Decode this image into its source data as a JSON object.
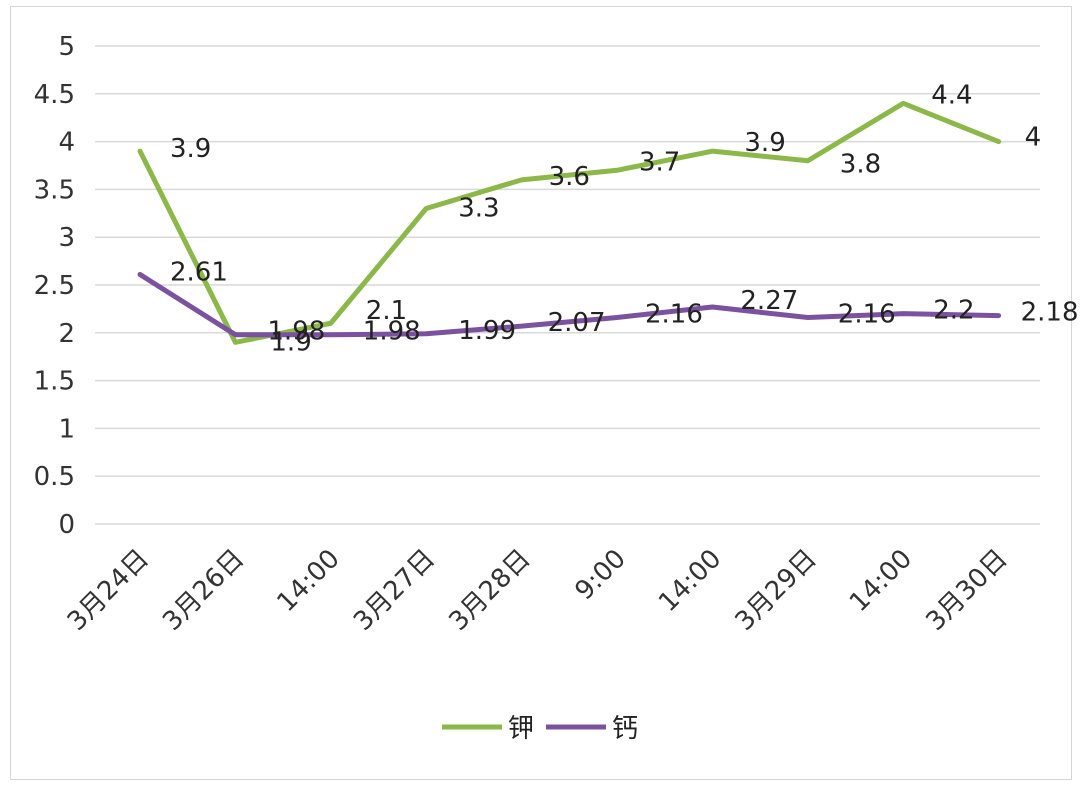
{
  "chart_data": {
    "type": "line",
    "categories": [
      "3月24日",
      "3月26日",
      "14:00",
      "3月27日",
      "3月28日",
      "9:00",
      "14:00",
      "3月29日",
      "14:00",
      "3月30日"
    ],
    "series": [
      {
        "name": "钾",
        "color": "#8cb84a",
        "values": [
          3.9,
          1.9,
          2.1,
          3.3,
          3.6,
          3.7,
          3.9,
          3.8,
          4.4,
          4
        ],
        "labels": [
          "3.9",
          "1.9",
          "2.1",
          "3.3",
          "3.6",
          "3.7",
          "3.9",
          "3.8",
          "4.4",
          "4"
        ]
      },
      {
        "name": "钙",
        "color": "#7b52a0",
        "values": [
          2.61,
          1.98,
          1.98,
          1.99,
          2.07,
          2.16,
          2.27,
          2.16,
          2.2,
          2.18
        ],
        "labels": [
          "2.61",
          "1.98",
          "1.98",
          "1.99",
          "2.07",
          "2.16",
          "2.27",
          "2.16",
          "2.2",
          "2.18"
        ]
      }
    ],
    "ylim": [
      0,
      5
    ],
    "yticks": [
      "0",
      "0.5",
      "1",
      "1.5",
      "2",
      "2.5",
      "3",
      "3.5",
      "4",
      "4.5",
      "5"
    ],
    "grid": true,
    "legend": "bottom",
    "title": "",
    "xlabel": "",
    "ylabel": ""
  }
}
